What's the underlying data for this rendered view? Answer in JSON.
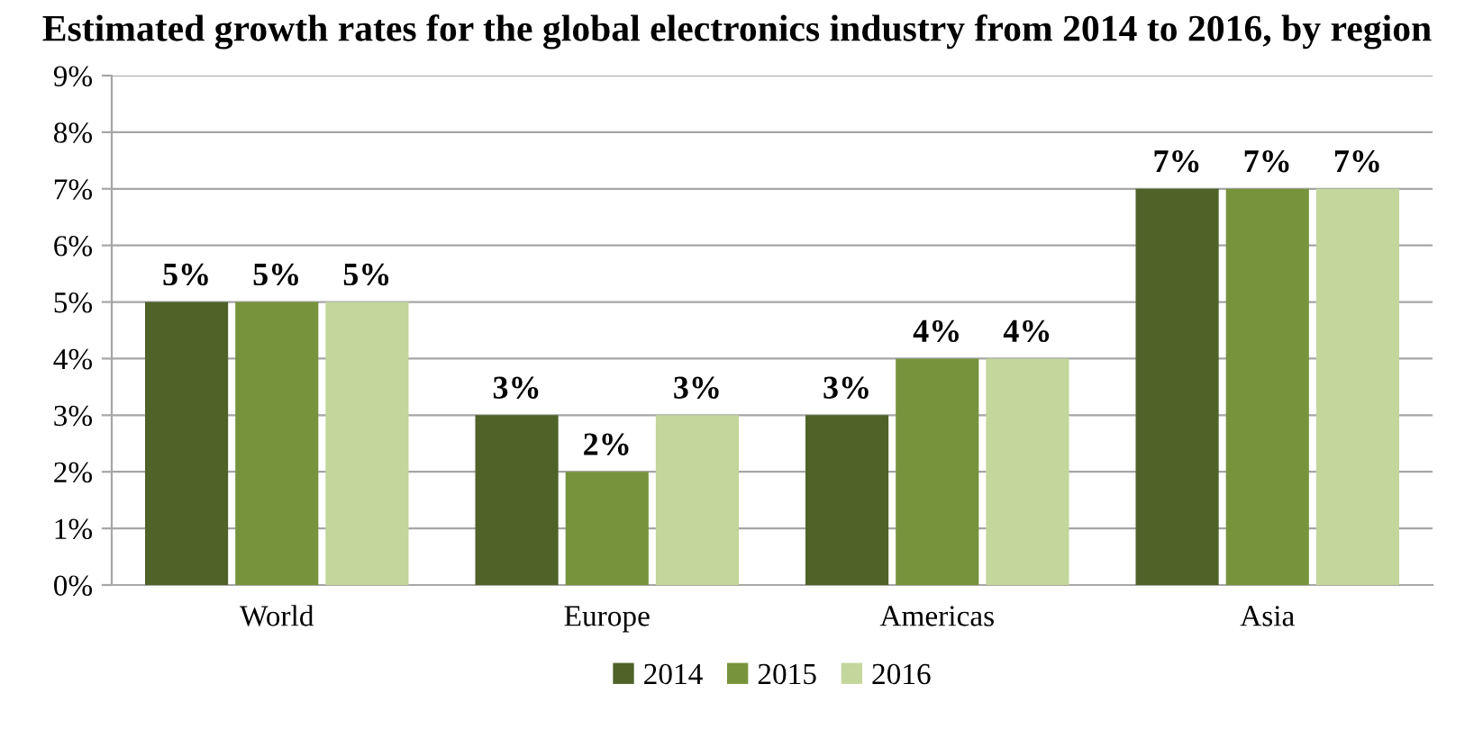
{
  "chart_data": {
    "type": "bar",
    "title": "Estimated growth rates for the global electronics industry from 2014 to 2016, by region",
    "categories": [
      "World",
      "Europe",
      "Americas",
      "Asia"
    ],
    "series": [
      {
        "name": "2014",
        "color": "#4f6228",
        "values": [
          5,
          3,
          3,
          7
        ],
        "value_labels": [
          "5%",
          "3%",
          "3%",
          "7%"
        ]
      },
      {
        "name": "2015",
        "color": "#77933c",
        "values": [
          5,
          2,
          4,
          7
        ],
        "value_labels": [
          "5%",
          "2%",
          "4%",
          "7%"
        ]
      },
      {
        "name": "2016",
        "color": "#c3d69b",
        "values": [
          5,
          3,
          4,
          7
        ],
        "value_labels": [
          "5%",
          "3%",
          "4%",
          "7%"
        ]
      }
    ],
    "ylim": [
      0,
      9
    ],
    "yticks": [
      {
        "value": 0,
        "label": "0%"
      },
      {
        "value": 1,
        "label": "1%"
      },
      {
        "value": 2,
        "label": "2%"
      },
      {
        "value": 3,
        "label": "3%"
      },
      {
        "value": 4,
        "label": "4%"
      },
      {
        "value": 5,
        "label": "5%"
      },
      {
        "value": 6,
        "label": "6%"
      },
      {
        "value": 7,
        "label": "7%"
      },
      {
        "value": 8,
        "label": "8%"
      },
      {
        "value": 9,
        "label": "9%"
      }
    ],
    "grid": "y",
    "legend": "bottom"
  }
}
